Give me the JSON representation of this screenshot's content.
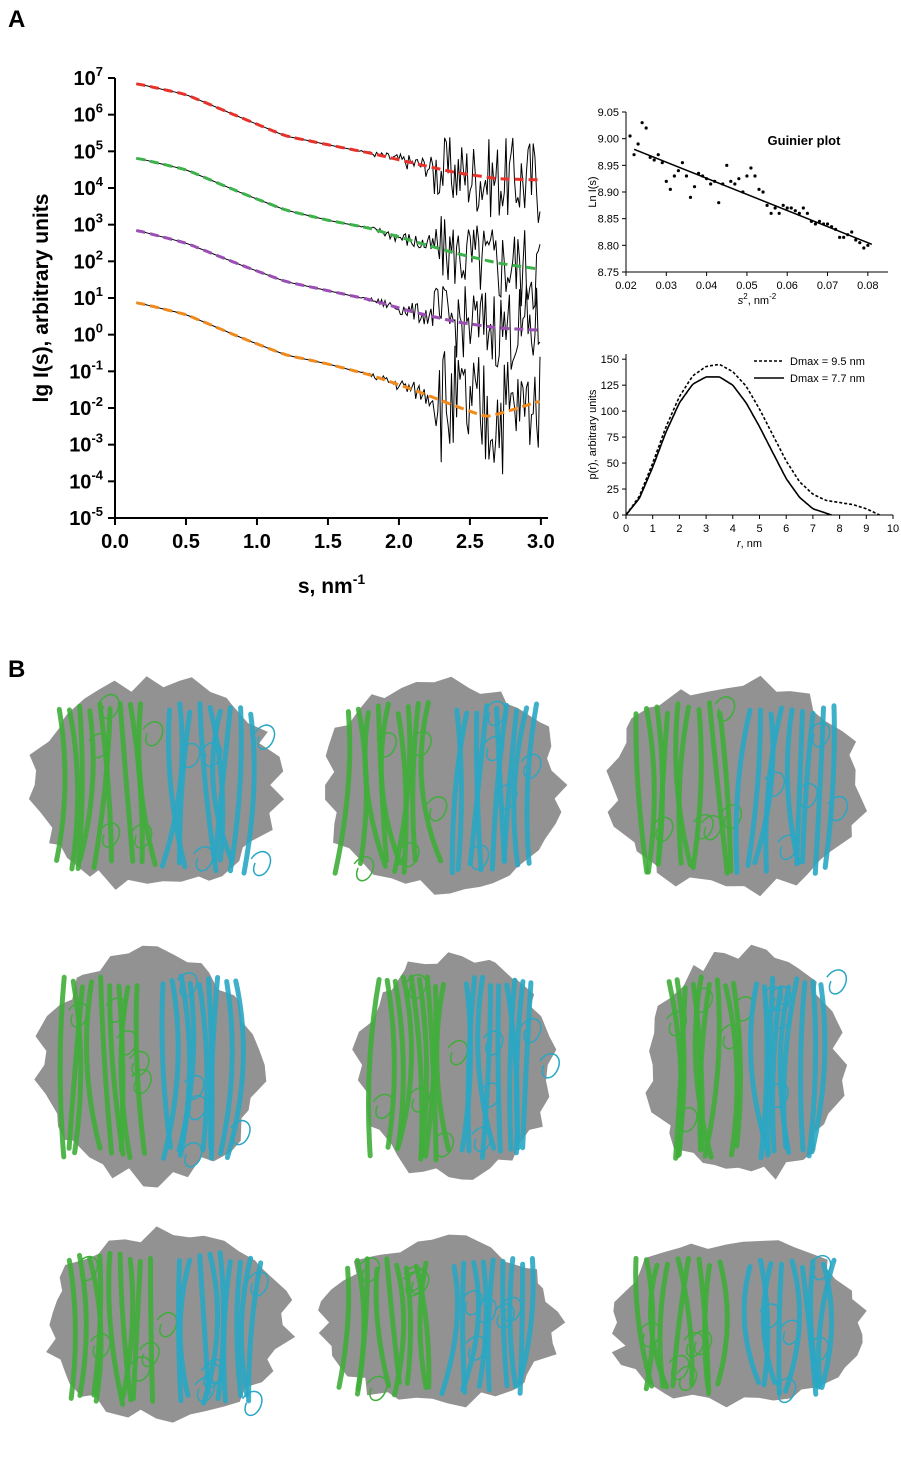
{
  "panel_labels": {
    "a": "A",
    "b": "B"
  },
  "chart_data": [
    {
      "id": "scattering",
      "type": "line",
      "xlabel": "s, nm",
      "xlabel_sup": "-1",
      "ylabel": "lg I(s), arbitrary units",
      "xlim": [
        0.0,
        3.05
      ],
      "ylim_log10": [
        -5,
        7
      ],
      "log_y": true,
      "x_ticks": [
        "0.0",
        "0.5",
        "1.0",
        "1.5",
        "2.0",
        "2.5",
        "3.0"
      ],
      "y_ticks_base": "10",
      "y_ticks_exp": [
        "7",
        "6",
        "5",
        "4",
        "3",
        "2",
        "1",
        "0",
        "-1",
        "-2",
        "-3",
        "-4",
        "-5"
      ],
      "series": [
        {
          "fit_color": "#e8312a",
          "x": [
            0.15,
            0.5,
            0.9,
            1.2,
            1.5,
            1.8,
            2.1,
            2.4,
            2.7,
            3.0
          ],
          "log10_y": [
            6.85,
            6.55,
            5.9,
            5.42,
            5.18,
            4.95,
            4.68,
            4.42,
            4.25,
            4.22
          ]
        },
        {
          "fit_color": "#3cb24a",
          "x": [
            0.15,
            0.5,
            0.9,
            1.2,
            1.5,
            1.8,
            2.1,
            2.4,
            2.7,
            3.0
          ],
          "log10_y": [
            4.82,
            4.5,
            3.85,
            3.4,
            3.12,
            2.9,
            2.55,
            2.22,
            1.95,
            1.78
          ]
        },
        {
          "fit_color": "#9b4fb4",
          "x": [
            0.15,
            0.5,
            0.9,
            1.2,
            1.5,
            1.8,
            2.1,
            2.4,
            2.7,
            3.0
          ],
          "log10_y": [
            2.85,
            2.5,
            1.88,
            1.45,
            1.2,
            0.95,
            0.62,
            0.35,
            0.18,
            0.12
          ]
        },
        {
          "fit_color": "#f08a1c",
          "x": [
            0.15,
            0.5,
            0.9,
            1.2,
            1.5,
            1.8,
            2.1,
            2.4,
            2.62,
            2.8,
            3.0
          ],
          "log10_y": [
            0.88,
            0.55,
            -0.1,
            -0.55,
            -0.8,
            -1.1,
            -1.5,
            -1.95,
            -2.25,
            -2.05,
            -1.8
          ]
        }
      ]
    },
    {
      "id": "guinier",
      "type": "scatter",
      "title": "Guinier plot",
      "xlabel": "s",
      "xlabel_suffix": ", nm",
      "ylabel": "Ln I(s)",
      "xlim": [
        0.02,
        0.085
      ],
      "ylim": [
        8.75,
        9.05
      ],
      "x_ticks": [
        "0.02",
        "0.03",
        "0.04",
        "0.05",
        "0.06",
        "0.07",
        "0.08"
      ],
      "y_ticks": [
        "9.05",
        "9.00",
        "8.95",
        "8.90",
        "8.85",
        "8.80",
        "8.75"
      ],
      "fit_line": {
        "x": [
          0.022,
          0.081
        ],
        "y": [
          8.98,
          8.802
        ]
      },
      "points": {
        "x": [
          0.021,
          0.022,
          0.023,
          0.024,
          0.025,
          0.026,
          0.027,
          0.028,
          0.029,
          0.03,
          0.031,
          0.032,
          0.033,
          0.034,
          0.035,
          0.036,
          0.037,
          0.038,
          0.039,
          0.04,
          0.041,
          0.042,
          0.043,
          0.044,
          0.045,
          0.046,
          0.047,
          0.048,
          0.049,
          0.05,
          0.051,
          0.052,
          0.053,
          0.054,
          0.055,
          0.056,
          0.057,
          0.058,
          0.059,
          0.06,
          0.061,
          0.062,
          0.063,
          0.064,
          0.065,
          0.066,
          0.067,
          0.068,
          0.069,
          0.07,
          0.071,
          0.072,
          0.073,
          0.074,
          0.075,
          0.076,
          0.077,
          0.078,
          0.079,
          0.08
        ],
        "y": [
          9.005,
          8.97,
          8.99,
          9.03,
          9.02,
          8.965,
          8.96,
          8.97,
          8.955,
          8.92,
          8.905,
          8.93,
          8.94,
          8.955,
          8.93,
          8.89,
          8.91,
          8.935,
          8.93,
          8.925,
          8.915,
          8.92,
          8.88,
          8.915,
          8.95,
          8.92,
          8.915,
          8.925,
          8.9,
          8.93,
          8.945,
          8.93,
          8.905,
          8.9,
          8.875,
          8.86,
          8.87,
          8.86,
          8.875,
          8.87,
          8.87,
          8.865,
          8.86,
          8.87,
          8.86,
          8.845,
          8.84,
          8.845,
          8.84,
          8.84,
          8.835,
          8.83,
          8.815,
          8.815,
          8.82,
          8.825,
          8.81,
          8.805,
          8.795,
          8.8
        ]
      }
    },
    {
      "id": "pr",
      "type": "line",
      "xlabel": "r",
      "xlabel_suffix": ", nm",
      "ylabel": "p(r), arbitrary units",
      "xlim": [
        0,
        10
      ],
      "ylim": [
        0,
        155
      ],
      "x_ticks": [
        "0",
        "1",
        "2",
        "3",
        "4",
        "5",
        "6",
        "7",
        "8",
        "9",
        "10"
      ],
      "y_ticks": [
        "150",
        "125",
        "100",
        "75",
        "50",
        "25",
        "0"
      ],
      "series": [
        {
          "name": "Dmax = 9.5 nm",
          "style": "dashed",
          "x": [
            0,
            0.5,
            1,
            1.5,
            2,
            2.5,
            3,
            3.5,
            4,
            4.5,
            5,
            5.5,
            6,
            6.5,
            7,
            7.5,
            8,
            8.5,
            9,
            9.5
          ],
          "y": [
            0,
            18,
            50,
            85,
            114,
            134,
            143,
            145,
            138,
            124,
            102,
            77,
            52,
            32,
            20,
            14,
            12,
            10,
            6,
            0
          ]
        },
        {
          "name": "Dmax = 7.7 nm",
          "style": "solid",
          "x": [
            0,
            0.5,
            1,
            1.5,
            2,
            2.5,
            3,
            3.5,
            4,
            4.5,
            5,
            5.5,
            6,
            6.5,
            7,
            7.7
          ],
          "y": [
            0,
            16,
            46,
            80,
            108,
            126,
            133,
            133,
            125,
            108,
            85,
            60,
            35,
            17,
            6,
            0
          ]
        }
      ]
    }
  ],
  "models": {
    "surface_color": "#7f7f7f",
    "chain_a_color": "#3fae3a",
    "chain_b_color": "#29a7c4",
    "rows": 3,
    "cols": 3
  }
}
